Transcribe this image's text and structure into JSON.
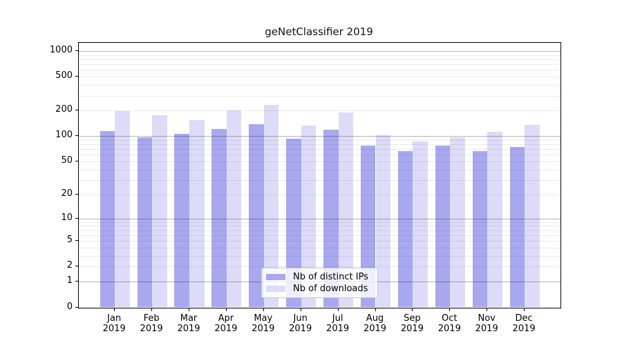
{
  "title": "geNetClassifier 2019",
  "colors": {
    "distinct_ips": "#a8a8ef",
    "downloads": "#dcdcf8",
    "grid_major": "rgba(0,0,0,0.30)",
    "grid_minor": "rgba(0,0,0,0.08)",
    "axis": "#000000",
    "legend_border": "#c8c8c8"
  },
  "chart_data": {
    "type": "bar",
    "title": "geNetClassifier 2019",
    "categories": [
      "Jan",
      "Feb",
      "Mar",
      "Apr",
      "May",
      "Jun",
      "Jul",
      "Aug",
      "Sep",
      "Oct",
      "Nov",
      "Dec"
    ],
    "year_label": "2019",
    "series": [
      {
        "name": "Nb of distinct IPs",
        "values": [
          115,
          97,
          107,
          121,
          138,
          94,
          119,
          77,
          67,
          78,
          66,
          74
        ]
      },
      {
        "name": "Nb of downloads",
        "values": [
          198,
          178,
          154,
          201,
          234,
          134,
          190,
          103,
          87,
          97,
          112,
          136
        ]
      }
    ],
    "y_ticks": [
      0,
      1,
      2,
      5,
      10,
      20,
      50,
      100,
      200,
      500,
      1000
    ],
    "y_scale": "log1p",
    "ylim": [
      0,
      1000
    ],
    "grid": "horizontal, minor light + major dark, drawn over bars",
    "legend_position": "lower center"
  }
}
